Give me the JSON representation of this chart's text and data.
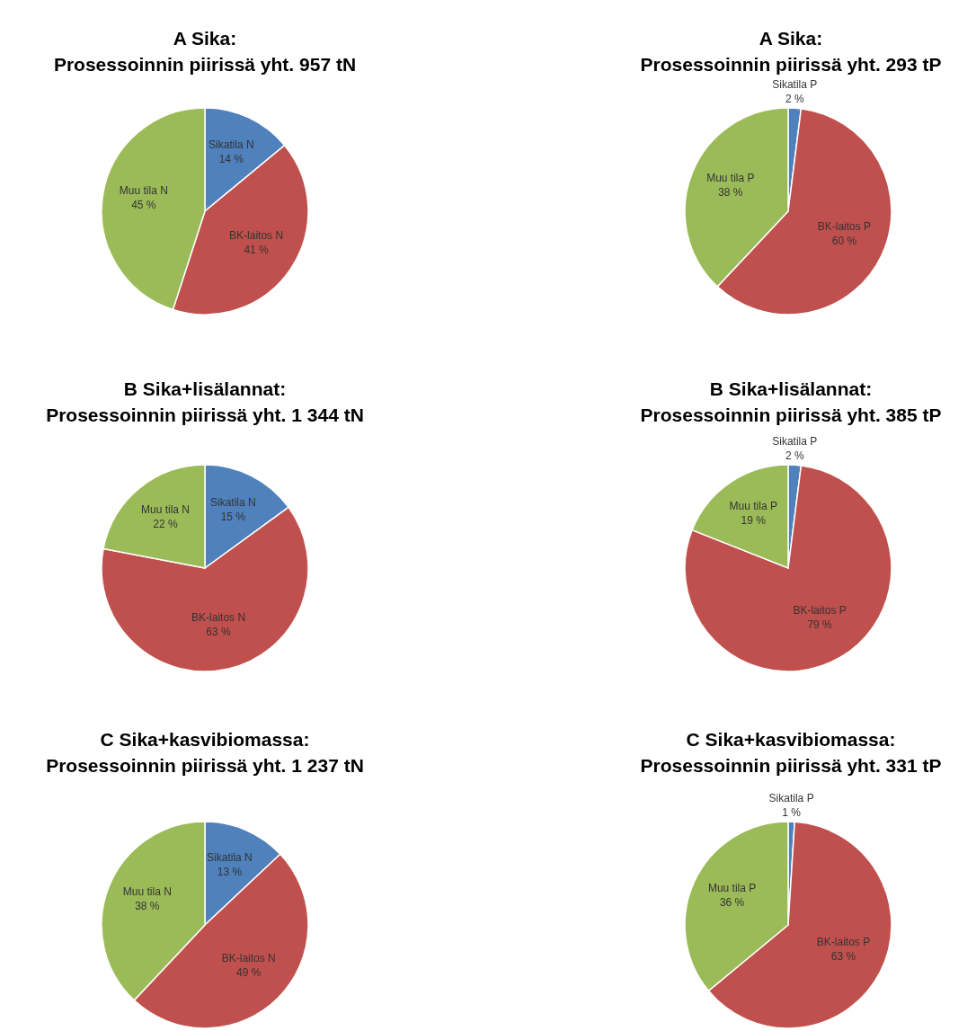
{
  "chart_data": [
    {
      "type": "pie",
      "title": "A Sika:",
      "subtitle": "Prosessoinnin piirissä yht. 957 tN",
      "categories": [
        "Sikatila N",
        "BK-laitos N",
        "Muu tila N"
      ],
      "values": [
        14,
        41,
        45
      ],
      "value_labels": [
        "14 %",
        "41 %",
        "45 %"
      ],
      "colors": [
        "#4f81bd",
        "#c0504d",
        "#9bbb59"
      ]
    },
    {
      "type": "pie",
      "title": "A Sika:",
      "subtitle": "Prosessoinnin piirissä yht. 293 tP",
      "categories": [
        "Sikatila P",
        "BK-laitos P",
        "Muu tila P"
      ],
      "values": [
        2,
        60,
        38
      ],
      "value_labels": [
        "2 %",
        "60 %",
        "38 %"
      ],
      "colors": [
        "#4f81bd",
        "#c0504d",
        "#9bbb59"
      ]
    },
    {
      "type": "pie",
      "title": "B Sika+lisälannat:",
      "subtitle": "Prosessoinnin piirissä yht. 1 344 tN",
      "categories": [
        "Sikatila N",
        "BK-laitos N",
        "Muu tila N"
      ],
      "values": [
        15,
        63,
        22
      ],
      "value_labels": [
        "15 %",
        "63 %",
        "22 %"
      ],
      "colors": [
        "#4f81bd",
        "#c0504d",
        "#9bbb59"
      ]
    },
    {
      "type": "pie",
      "title": "B Sika+lisälannat:",
      "subtitle": "Prosessoinnin piirissä yht. 385 tP",
      "categories": [
        "Sikatila P",
        "BK-laitos P",
        "Muu tila P"
      ],
      "values": [
        2,
        79,
        19
      ],
      "value_labels": [
        "2 %",
        "79 %",
        "19 %"
      ],
      "colors": [
        "#4f81bd",
        "#c0504d",
        "#9bbb59"
      ]
    },
    {
      "type": "pie",
      "title": "C Sika+kasvibiomassa:",
      "subtitle": "Prosessoinnin piirissä yht. 1 237 tN",
      "categories": [
        "Sikatila N",
        "BK-laitos N",
        "Muu tila N"
      ],
      "values": [
        13,
        49,
        38
      ],
      "value_labels": [
        "13 %",
        "49 %",
        "38 %"
      ],
      "colors": [
        "#4f81bd",
        "#c0504d",
        "#9bbb59"
      ]
    },
    {
      "type": "pie",
      "title": "C Sika+kasvibiomassa:",
      "subtitle": "Prosessoinnin piirissä yht. 331 tP",
      "categories": [
        "Sikatila P",
        "BK-laitos P",
        "Muu tila P"
      ],
      "values": [
        1,
        63,
        36
      ],
      "value_labels": [
        "1 %",
        "63 %",
        "36 %"
      ],
      "colors": [
        "#4f81bd",
        "#c0504d",
        "#9bbb59"
      ]
    }
  ]
}
